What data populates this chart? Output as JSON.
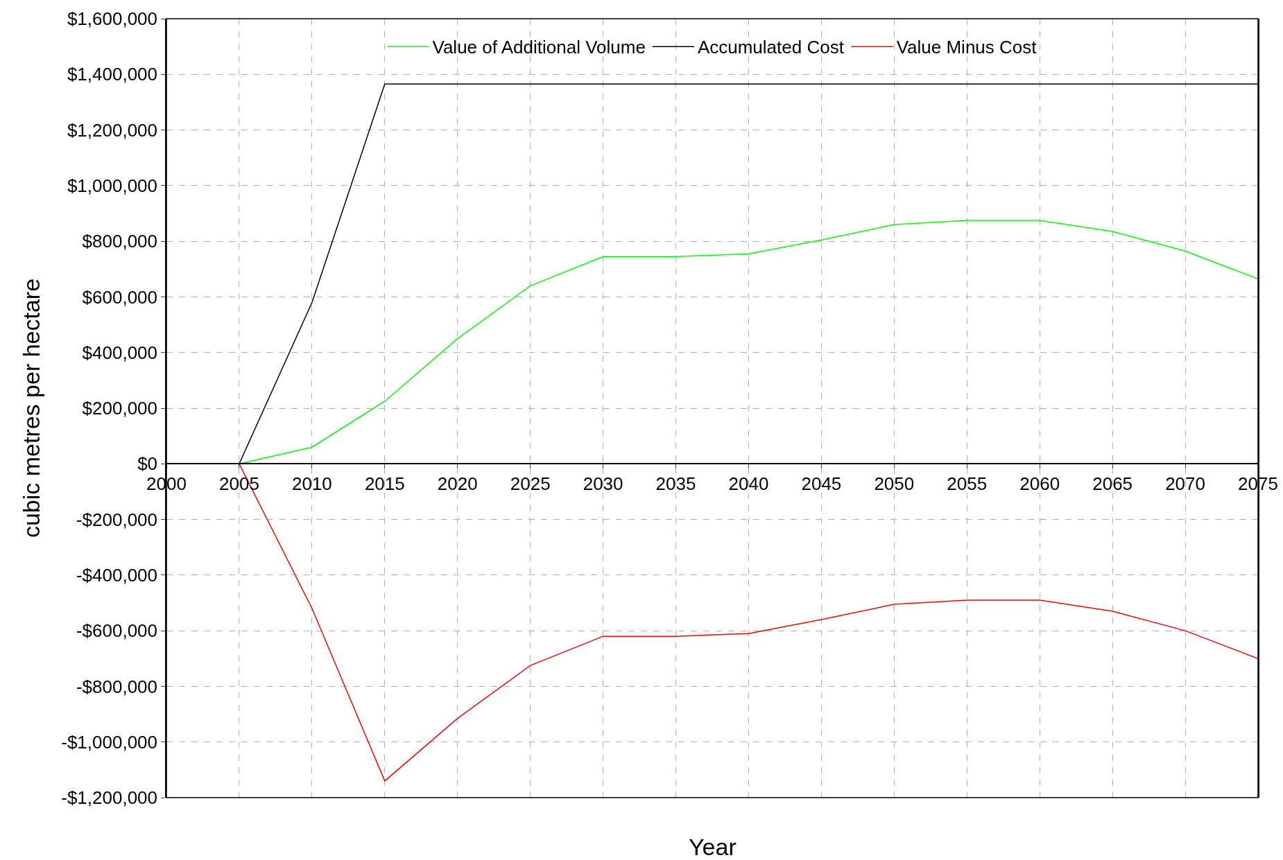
{
  "chart_data": {
    "type": "line",
    "xlabel": "Year",
    "ylabel": "cubic metres per hectare",
    "x": [
      2002,
      2005,
      2010,
      2015,
      2020,
      2025,
      2030,
      2035,
      2040,
      2045,
      2050,
      2055,
      2060,
      2065,
      2070,
      2075
    ],
    "series": [
      {
        "name": "Value of Additional Volume",
        "color": "#00ff00",
        "values": [
          0,
          0,
          60000,
          225000,
          450000,
          640000,
          745000,
          745000,
          755000,
          805000,
          860000,
          875000,
          875000,
          835000,
          765000,
          665000
        ]
      },
      {
        "name": "Accumulated Cost",
        "color": "#000000",
        "values": [
          0,
          0,
          580000,
          1365000,
          1365000,
          1365000,
          1365000,
          1365000,
          1365000,
          1365000,
          1365000,
          1365000,
          1365000,
          1365000,
          1365000,
          1365000
        ]
      },
      {
        "name": "Value Minus Cost",
        "color": "#ff0000",
        "values": [
          0,
          0,
          -520000,
          -1140000,
          -915000,
          -725000,
          -620000,
          -620000,
          -610000,
          -560000,
          -505000,
          -490000,
          -490000,
          -530000,
          -600000,
          -700000
        ]
      }
    ],
    "xlim": [
      2000,
      2075
    ],
    "xticks": [
      2000,
      2005,
      2010,
      2015,
      2020,
      2025,
      2030,
      2035,
      2040,
      2045,
      2050,
      2055,
      2060,
      2065,
      2070,
      2075
    ],
    "ylim": [
      -1200000,
      1600000
    ],
    "yticks": [
      {
        "value": -1200000,
        "label": "-$1,200,000"
      },
      {
        "value": -1000000,
        "label": "-$1,000,000"
      },
      {
        "value": -800000,
        "label": "-$800,000"
      },
      {
        "value": -600000,
        "label": "-$600,000"
      },
      {
        "value": -400000,
        "label": "-$400,000"
      },
      {
        "value": -200000,
        "label": "-$200,000"
      },
      {
        "value": 0,
        "label": "$0"
      },
      {
        "value": 200000,
        "label": "$200,000"
      },
      {
        "value": 400000,
        "label": "$400,000"
      },
      {
        "value": 600000,
        "label": "$600,000"
      },
      {
        "value": 800000,
        "label": "$800,000"
      },
      {
        "value": 1000000,
        "label": "$1,000,000"
      },
      {
        "value": 1200000,
        "label": "$1,200,000"
      },
      {
        "value": 1400000,
        "label": "$1,400,000"
      },
      {
        "value": 1600000,
        "label": "$1,600,000"
      }
    ],
    "grid": true,
    "legend": "top",
    "marker": "none",
    "line_style": "solid"
  }
}
